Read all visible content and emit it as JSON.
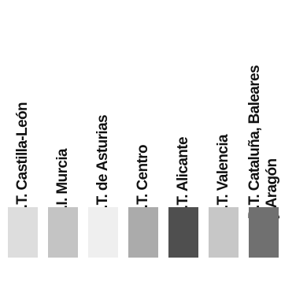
{
  "chart_data": {
    "type": "legend",
    "entries": [
      {
        "label": "D.T. Castilla-León",
        "color": "#dddddd"
      },
      {
        "label": "D.I. Murcia",
        "color": "#c4c4c4"
      },
      {
        "label": "D.T. de Asturias",
        "color": "#efefef"
      },
      {
        "label": "D.T. Centro",
        "color": "#ababab"
      },
      {
        "label": "D.T. Alicante",
        "color": "#4f4f4f"
      },
      {
        "label": "D.T. Valencia",
        "color": "#c7c7c7"
      },
      {
        "label": "D.T. Cataluña, Baleares\ny Aragón",
        "color": "#707070"
      }
    ]
  }
}
